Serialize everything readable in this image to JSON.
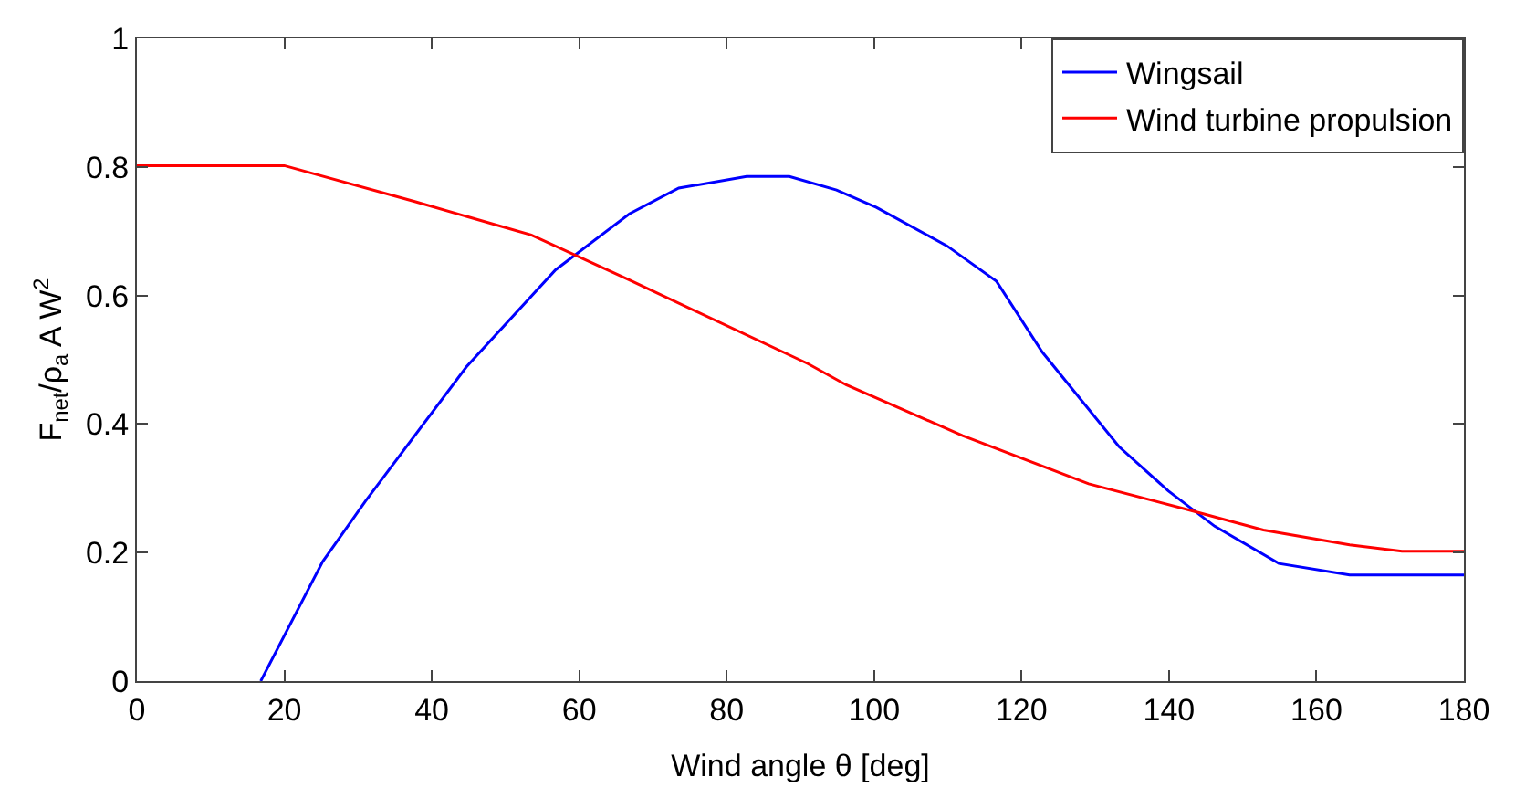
{
  "chart_data": {
    "type": "line",
    "xlabel": "Wind angle θ [deg]",
    "ylabel": "F$_{net}$/ρ$_{a}$ A W$^{2}$",
    "xlim": [
      0,
      180
    ],
    "xticks": [
      0,
      20,
      40,
      60,
      80,
      100,
      120,
      140,
      160,
      180
    ],
    "ylim": [
      0,
      1
    ],
    "yticks": [
      0,
      0.2,
      0.4,
      0.6,
      0.8,
      1
    ],
    "legend": "top right",
    "line_style": "solid",
    "series": [
      {
        "name": "Wingsail",
        "color": "#0000ff",
        "x": [
          16.8,
          25.2,
          31,
          44.7,
          56.8,
          66.8,
          73.5,
          82.7,
          88.5,
          94.9,
          100.3,
          109.9,
          116.6,
          122.8,
          133.2,
          139.9,
          146.2,
          154.9,
          164.5,
          180
        ],
        "values": [
          0,
          0.186,
          0.28,
          0.489,
          0.64,
          0.727,
          0.767,
          0.785,
          0.785,
          0.764,
          0.737,
          0.677,
          0.622,
          0.512,
          0.365,
          0.296,
          0.241,
          0.183,
          0.165,
          0.165
        ]
      },
      {
        "name": "Wind turbine propulsion",
        "color": "#ff0000",
        "x": [
          0,
          20,
          37.7,
          53.5,
          66.8,
          91,
          96.2,
          112,
          129.1,
          142.8,
          152.8,
          164.5,
          171.6,
          180
        ],
        "values": [
          0.802,
          0.802,
          0.746,
          0.694,
          0.624,
          0.494,
          0.461,
          0.382,
          0.307,
          0.266,
          0.235,
          0.212,
          0.202,
          0.202
        ]
      }
    ]
  }
}
